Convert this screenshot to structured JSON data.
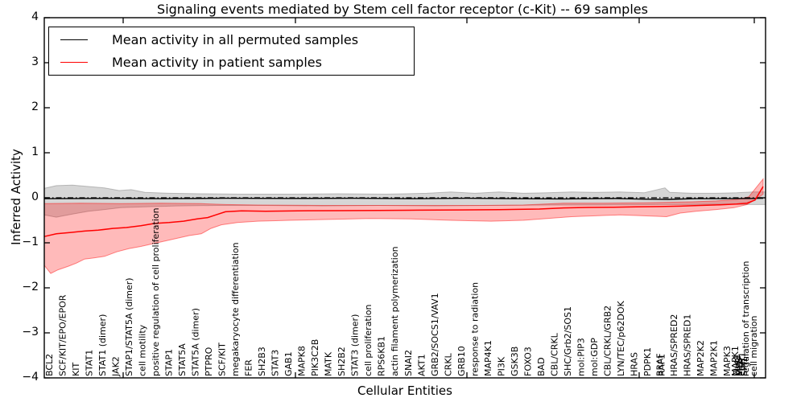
{
  "title": "Signaling events mediated by Stem cell factor receptor (c-Kit) -- 69 samples",
  "axes": {
    "x_label": "Cellular Entities",
    "y_label": "Inferred Activity",
    "y_tick_labels": [
      "4",
      "3",
      "2",
      "1",
      "0",
      "−1",
      "−2",
      "−3",
      "−4"
    ],
    "y_tick_values": [
      4,
      3,
      2,
      1,
      0,
      -1,
      -2,
      -3,
      -4
    ],
    "ylim": [
      -4,
      4
    ]
  },
  "legend": {
    "items": [
      {
        "label": "Mean activity in all permuted samples",
        "color": "#000000"
      },
      {
        "label": "Mean activity in patient samples",
        "color": "#ff0000"
      }
    ],
    "position": "upper-left"
  },
  "colors": {
    "permuted_line": "#000000",
    "permuted_band": "rgba(128,128,128,0.32)",
    "patient_line": "#ff0000",
    "patient_band": "rgba(255,0,0,0.27)",
    "zero_line": "#000000"
  },
  "chart_data": {
    "type": "line",
    "title": "Signaling events mediated by Stem cell factor receptor (c-Kit) -- 69 samples",
    "xlabel": "Cellular Entities",
    "ylabel": "Inferred Activity",
    "ylim": [
      -4,
      4
    ],
    "grid": false,
    "zero_line": {
      "style": "dash-dot",
      "value": 0
    },
    "note": "x of each point is horizontal pixel position along the categorical axis (px 55..951); y is Inferred Activity units",
    "categories": [
      "BCL2",
      "SCF/KIT/EPO/EPOR",
      "KIT",
      "STAT1",
      "STAT1 (dimer)",
      "JAK2",
      "STAP1/STAT5A (dimer)",
      "cell motility",
      "positive regulation of cell proliferation",
      "STAP1",
      "STAT5A",
      "STAT5A (dimer)",
      "PTPRO",
      "SCF/KIT",
      "megakaryocyte differentiation",
      "FER",
      "SH2B3",
      "STAT3",
      "GAB1",
      "MAPK8",
      "PIK3C2B",
      "MATK",
      "SH2B2",
      "STAT3 (dimer)",
      "cell proliferation",
      "RPS6KB1",
      "actin filament polymerization",
      "SNAI2",
      "AKT1",
      "GRB2/SOCS1/VAV1",
      "CRKL",
      "GRB10",
      "response to radiation",
      "MAP4K1",
      "PI3K",
      "GSK3B",
      "FOXO3",
      "BAD",
      "CBL/CRKL",
      "SHC/Grb2/SOS1",
      "mol:PIP3",
      "mol:GDP",
      "CBL/CRKL/GRB2",
      "LYN/TEC/p62DOK",
      "HRAS",
      "PDPK1",
      [
        "BRAF",
        "RAF1"
      ],
      "HRAS/SPRED2",
      "HRAS/SPRED1",
      "MAP2K2",
      "MAP2K1",
      "MAPK3",
      [
        "MAPK1",
        "ELK1",
        "MYB",
        "MITF",
        "EGR1",
        "SPI1",
        "regulation of transcription"
      ],
      "cell migration"
    ],
    "series": [
      {
        "name": "Mean activity in all permuted samples",
        "points": [
          [
            55,
            -0.02
          ],
          [
            120,
            -0.015
          ],
          [
            200,
            -0.02
          ],
          [
            280,
            -0.01
          ],
          [
            360,
            -0.015
          ],
          [
            440,
            -0.01
          ],
          [
            520,
            -0.02
          ],
          [
            580,
            -0.01
          ],
          [
            640,
            -0.02
          ],
          [
            700,
            -0.025
          ],
          [
            760,
            -0.015
          ],
          [
            800,
            -0.03
          ],
          [
            830,
            -0.035
          ],
          [
            865,
            -0.02
          ],
          [
            900,
            -0.02
          ],
          [
            935,
            -0.015
          ],
          [
            948,
            -0.01
          ]
        ],
        "band_top": [
          [
            55,
            0.21
          ],
          [
            70,
            0.27
          ],
          [
            90,
            0.28
          ],
          [
            110,
            0.25
          ],
          [
            130,
            0.22
          ],
          [
            148,
            0.16
          ],
          [
            163,
            0.18
          ],
          [
            180,
            0.12
          ],
          [
            210,
            0.1
          ],
          [
            250,
            0.09
          ],
          [
            300,
            0.08
          ],
          [
            360,
            0.08
          ],
          [
            420,
            0.09
          ],
          [
            480,
            0.08
          ],
          [
            530,
            0.1
          ],
          [
            560,
            0.13
          ],
          [
            590,
            0.1
          ],
          [
            620,
            0.13
          ],
          [
            650,
            0.1
          ],
          [
            680,
            0.11
          ],
          [
            710,
            0.13
          ],
          [
            740,
            0.12
          ],
          [
            770,
            0.13
          ],
          [
            800,
            0.11
          ],
          [
            826,
            0.22
          ],
          [
            832,
            0.12
          ],
          [
            860,
            0.1
          ],
          [
            890,
            0.1
          ],
          [
            915,
            0.11
          ],
          [
            935,
            0.13
          ],
          [
            951,
            0.13
          ]
        ],
        "band_bottom": [
          [
            55,
            -0.38
          ],
          [
            70,
            -0.43
          ],
          [
            90,
            -0.36
          ],
          [
            110,
            -0.3
          ],
          [
            130,
            -0.26
          ],
          [
            150,
            -0.22
          ],
          [
            180,
            -0.2
          ],
          [
            220,
            -0.18
          ],
          [
            270,
            -0.17
          ],
          [
            330,
            -0.17
          ],
          [
            400,
            -0.18
          ],
          [
            470,
            -0.17
          ],
          [
            540,
            -0.18
          ],
          [
            610,
            -0.17
          ],
          [
            680,
            -0.16
          ],
          [
            750,
            -0.16
          ],
          [
            820,
            -0.15
          ],
          [
            860,
            -0.15
          ],
          [
            900,
            -0.14
          ],
          [
            925,
            -0.15
          ],
          [
            951,
            -0.15
          ]
        ]
      },
      {
        "name": "Mean activity in patient samples",
        "points": [
          [
            55,
            -0.86
          ],
          [
            70,
            -0.8
          ],
          [
            88,
            -0.77
          ],
          [
            105,
            -0.74
          ],
          [
            122,
            -0.72
          ],
          [
            140,
            -0.68
          ],
          [
            157,
            -0.66
          ],
          [
            175,
            -0.62
          ],
          [
            192,
            -0.57
          ],
          [
            210,
            -0.55
          ],
          [
            228,
            -0.52
          ],
          [
            245,
            -0.47
          ],
          [
            258,
            -0.44
          ],
          [
            268,
            -0.38
          ],
          [
            280,
            -0.31
          ],
          [
            300,
            -0.29
          ],
          [
            330,
            -0.3
          ],
          [
            370,
            -0.29
          ],
          [
            420,
            -0.285
          ],
          [
            470,
            -0.28
          ],
          [
            520,
            -0.275
          ],
          [
            570,
            -0.27
          ],
          [
            620,
            -0.265
          ],
          [
            670,
            -0.25
          ],
          [
            700,
            -0.225
          ],
          [
            730,
            -0.215
          ],
          [
            760,
            -0.21
          ],
          [
            790,
            -0.2
          ],
          [
            820,
            -0.195
          ],
          [
            845,
            -0.185
          ],
          [
            870,
            -0.17
          ],
          [
            895,
            -0.155
          ],
          [
            915,
            -0.14
          ],
          [
            928,
            -0.12
          ],
          [
            938,
            -0.05
          ],
          [
            948,
            0.25
          ]
        ],
        "band_top": [
          [
            55,
            -0.13
          ],
          [
            100,
            -0.12
          ],
          [
            150,
            -0.13
          ],
          [
            200,
            -0.12
          ],
          [
            250,
            -0.13
          ],
          [
            280,
            -0.15
          ],
          [
            320,
            -0.16
          ],
          [
            400,
            -0.17
          ],
          [
            500,
            -0.17
          ],
          [
            600,
            -0.17
          ],
          [
            650,
            -0.16
          ],
          [
            700,
            -0.12
          ],
          [
            750,
            -0.12
          ],
          [
            800,
            -0.11
          ],
          [
            830,
            -0.1
          ],
          [
            860,
            -0.09
          ],
          [
            890,
            -0.07
          ],
          [
            915,
            -0.04
          ],
          [
            930,
            0.02
          ],
          [
            948,
            0.42
          ]
        ],
        "band_bottom": [
          [
            55,
            -1.5
          ],
          [
            63,
            -1.68
          ],
          [
            72,
            -1.6
          ],
          [
            85,
            -1.52
          ],
          [
            95,
            -1.45
          ],
          [
            105,
            -1.36
          ],
          [
            115,
            -1.34
          ],
          [
            130,
            -1.3
          ],
          [
            145,
            -1.2
          ],
          [
            160,
            -1.13
          ],
          [
            175,
            -1.08
          ],
          [
            190,
            -1.02
          ],
          [
            205,
            -0.96
          ],
          [
            220,
            -0.9
          ],
          [
            235,
            -0.84
          ],
          [
            250,
            -0.8
          ],
          [
            262,
            -0.68
          ],
          [
            275,
            -0.6
          ],
          [
            295,
            -0.55
          ],
          [
            320,
            -0.52
          ],
          [
            360,
            -0.5
          ],
          [
            410,
            -0.48
          ],
          [
            460,
            -0.46
          ],
          [
            510,
            -0.47
          ],
          [
            560,
            -0.5
          ],
          [
            610,
            -0.52
          ],
          [
            650,
            -0.5
          ],
          [
            680,
            -0.46
          ],
          [
            710,
            -0.42
          ],
          [
            740,
            -0.4
          ],
          [
            770,
            -0.38
          ],
          [
            800,
            -0.4
          ],
          [
            828,
            -0.42
          ],
          [
            845,
            -0.34
          ],
          [
            865,
            -0.3
          ],
          [
            890,
            -0.26
          ],
          [
            912,
            -0.22
          ],
          [
            928,
            -0.15
          ],
          [
            940,
            -0.02
          ],
          [
            948,
            0.08
          ]
        ]
      }
    ]
  }
}
